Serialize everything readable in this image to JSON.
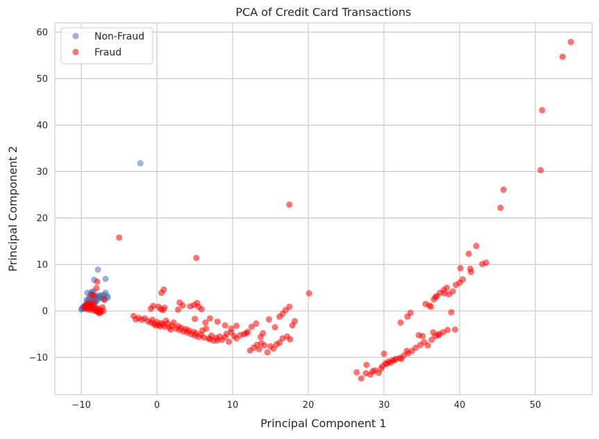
{
  "chart_data": {
    "type": "scatter",
    "title": "PCA of Credit Card Transactions",
    "xlabel": "Principal Component 1",
    "ylabel": "Principal Component 2",
    "xlim": [
      -13.5,
      57.5
    ],
    "ylim": [
      -18,
      62
    ],
    "xticks": [
      -10,
      0,
      10,
      20,
      30,
      40,
      50
    ],
    "yticks": [
      -10,
      0,
      10,
      20,
      30,
      40,
      50,
      60
    ],
    "tick_labels": {
      "x": [
        "−10",
        "0",
        "10",
        "20",
        "30",
        "40",
        "50"
      ],
      "y": [
        "−10",
        "0",
        "10",
        "20",
        "30",
        "40",
        "50",
        "60"
      ]
    },
    "grid": true,
    "legend_position": "top-left",
    "series": [
      {
        "name": "Non-Fraud",
        "color": "#4c72b0",
        "points": [
          [
            -10.0,
            0.3
          ],
          [
            -9.7,
            0.6
          ],
          [
            -9.5,
            0.9
          ],
          [
            -9.4,
            1.2
          ],
          [
            -9.3,
            1.6
          ],
          [
            -9.2,
            1.9
          ],
          [
            -9.1,
            2.2
          ],
          [
            -9.0,
            2.5
          ],
          [
            -8.9,
            3.0
          ],
          [
            -8.8,
            3.4
          ],
          [
            -8.7,
            3.8
          ],
          [
            -8.6,
            4.1
          ],
          [
            -8.5,
            2.6
          ],
          [
            -8.4,
            2.2
          ],
          [
            -8.3,
            1.9
          ],
          [
            -8.2,
            2.9
          ],
          [
            -8.1,
            3.3
          ],
          [
            -8.0,
            2.0
          ],
          [
            -7.9,
            2.5
          ],
          [
            -7.8,
            3.0
          ],
          [
            -7.7,
            2.7
          ],
          [
            -7.5,
            3.1
          ],
          [
            -7.3,
            2.8
          ],
          [
            -7.2,
            3.3
          ],
          [
            -7.0,
            3.5
          ],
          [
            -6.9,
            2.4
          ],
          [
            -6.8,
            3.9
          ],
          [
            -6.6,
            3.2
          ],
          [
            -6.5,
            2.9
          ],
          [
            -8.3,
            6.7
          ],
          [
            -7.8,
            8.9
          ],
          [
            -6.8,
            6.9
          ],
          [
            -2.2,
            31.8
          ],
          [
            -9.6,
            1.1
          ],
          [
            -9.3,
            2.4
          ],
          [
            -8.9,
            1.7
          ],
          [
            -8.6,
            3.6
          ],
          [
            -8.1,
            2.3
          ],
          [
            -9.8,
            0.8
          ],
          [
            -9.9,
            0.5
          ],
          [
            -9.2,
            3.9
          ],
          [
            -8.7,
            2.0
          ],
          [
            -8.4,
            4.2
          ],
          [
            -7.6,
            3.4
          ],
          [
            -9.4,
            0.4
          ],
          [
            -9.0,
            1.3
          ]
        ]
      },
      {
        "name": "Fraud",
        "color": "#ff0000",
        "points": [
          [
            -9.6,
            0.6
          ],
          [
            -9.5,
            0.9
          ],
          [
            -9.4,
            1.2
          ],
          [
            -9.3,
            0.8
          ],
          [
            -9.2,
            1.5
          ],
          [
            -9.1,
            0.5
          ],
          [
            -9.0,
            1.1
          ],
          [
            -8.9,
            0.3
          ],
          [
            -8.8,
            1.8
          ],
          [
            -8.7,
            0.7
          ],
          [
            -8.6,
            1.3
          ],
          [
            -8.5,
            0.2
          ],
          [
            -8.4,
            0.9
          ],
          [
            -8.3,
            1.6
          ],
          [
            -8.2,
            0.4
          ],
          [
            -8.1,
            0.0
          ],
          [
            -8.0,
            0.6
          ],
          [
            -7.9,
            -0.1
          ],
          [
            -7.8,
            0.5
          ],
          [
            -7.7,
            -0.3
          ],
          [
            -7.6,
            -0.5
          ],
          [
            -7.5,
            0.2
          ],
          [
            -7.4,
            -0.2
          ],
          [
            -7.2,
            0.8
          ],
          [
            -7.0,
            2.5
          ],
          [
            -7.1,
            0.0
          ],
          [
            -8.6,
            3.5
          ],
          [
            -8.3,
            3.2
          ],
          [
            -8.0,
            4.9
          ],
          [
            -7.9,
            6.3
          ],
          [
            -5.0,
            15.8
          ],
          [
            -3.1,
            -1.1
          ],
          [
            -2.8,
            -1.8
          ],
          [
            -2.4,
            -1.5
          ],
          [
            -2.0,
            -1.9
          ],
          [
            -1.6,
            -1.6
          ],
          [
            -1.2,
            -2.2
          ],
          [
            -0.8,
            -2.5
          ],
          [
            -0.6,
            -1.9
          ],
          [
            -0.4,
            -2.8
          ],
          [
            -0.2,
            -3.1
          ],
          [
            0.0,
            -2.4
          ],
          [
            0.2,
            -3.0
          ],
          [
            0.4,
            -3.3
          ],
          [
            0.6,
            -2.6
          ],
          [
            0.8,
            -2.9
          ],
          [
            1.0,
            -3.4
          ],
          [
            1.2,
            -2.1
          ],
          [
            1.4,
            -2.7
          ],
          [
            1.6,
            -3.5
          ],
          [
            1.8,
            -4.0
          ],
          [
            2.0,
            -3.2
          ],
          [
            2.2,
            -2.5
          ],
          [
            2.5,
            -3.8
          ],
          [
            2.8,
            -3.3
          ],
          [
            3.0,
            -4.1
          ],
          [
            3.2,
            -3.6
          ],
          [
            3.5,
            -4.4
          ],
          [
            3.8,
            -3.9
          ],
          [
            4.0,
            -4.6
          ],
          [
            4.2,
            -4.2
          ],
          [
            4.5,
            -5.0
          ],
          [
            4.8,
            -4.5
          ],
          [
            5.0,
            -5.3
          ],
          [
            5.2,
            -4.8
          ],
          [
            5.5,
            -5.6
          ],
          [
            5.8,
            -5.1
          ],
          [
            6.0,
            -4.2
          ],
          [
            6.2,
            -5.7
          ],
          [
            6.5,
            -3.8
          ],
          [
            6.8,
            -5.9
          ],
          [
            7.0,
            -6.1
          ],
          [
            7.2,
            -5.3
          ],
          [
            7.5,
            -6.4
          ],
          [
            7.8,
            -5.8
          ],
          [
            8.0,
            -6.3
          ],
          [
            8.3,
            -5.5
          ],
          [
            8.6,
            -6.2
          ],
          [
            9.0,
            -5.6
          ],
          [
            9.2,
            -4.9
          ],
          [
            9.5,
            -6.6
          ],
          [
            9.8,
            -4.6
          ],
          [
            10.2,
            -5.4
          ],
          [
            10.5,
            -5.9
          ],
          [
            11.0,
            -5.2
          ],
          [
            11.5,
            -5.0
          ],
          [
            12.0,
            -4.5
          ],
          [
            12.3,
            -8.5
          ],
          [
            12.8,
            -7.9
          ],
          [
            13.2,
            -7.3
          ],
          [
            13.5,
            -8.2
          ],
          [
            13.8,
            -6.9
          ],
          [
            14.2,
            -7.4
          ],
          [
            14.6,
            -8.9
          ],
          [
            15.0,
            -7.6
          ],
          [
            15.4,
            -8.1
          ],
          [
            15.8,
            -7.2
          ],
          [
            16.2,
            -6.8
          ],
          [
            16.6,
            -5.9
          ],
          [
            17.2,
            -5.5
          ],
          [
            17.6,
            -6.1
          ],
          [
            17.5,
            22.9
          ],
          [
            0.5,
            0.4
          ],
          [
            0.8,
            0.2
          ],
          [
            1.0,
            0.7
          ],
          [
            0.2,
            0.9
          ],
          [
            -0.5,
            1.1
          ],
          [
            -0.8,
            0.5
          ],
          [
            0.6,
            3.9
          ],
          [
            0.9,
            4.6
          ],
          [
            3.0,
            1.8
          ],
          [
            3.4,
            1.2
          ],
          [
            2.8,
            0.3
          ],
          [
            4.4,
            1.0
          ],
          [
            4.9,
            1.3
          ],
          [
            5.3,
            1.7
          ],
          [
            5.5,
            0.9
          ],
          [
            5.9,
            0.4
          ],
          [
            5.2,
            11.4
          ],
          [
            5.0,
            -1.7
          ],
          [
            6.4,
            -2.5
          ],
          [
            7.0,
            -1.6
          ],
          [
            8.0,
            -2.3
          ],
          [
            9.0,
            -3.1
          ],
          [
            9.8,
            -3.8
          ],
          [
            10.5,
            -3.2
          ],
          [
            12.5,
            -3.4
          ],
          [
            13.1,
            -2.7
          ],
          [
            14.0,
            -4.8
          ],
          [
            14.8,
            -1.8
          ],
          [
            15.6,
            -3.5
          ],
          [
            16.2,
            -1.2
          ],
          [
            16.6,
            -0.6
          ],
          [
            17.0,
            0.2
          ],
          [
            17.5,
            0.9
          ],
          [
            17.9,
            -3.1
          ],
          [
            18.2,
            -2.2
          ],
          [
            20.1,
            3.8
          ],
          [
            13.7,
            -5.6
          ],
          [
            11.8,
            -4.8
          ],
          [
            26.4,
            -13.2
          ],
          [
            27.0,
            -14.5
          ],
          [
            27.6,
            -13.4
          ],
          [
            28.2,
            -13.7
          ],
          [
            28.8,
            -12.8
          ],
          [
            29.3,
            -13.3
          ],
          [
            29.8,
            -11.9
          ],
          [
            30.2,
            -11.3
          ],
          [
            30.6,
            -10.9
          ],
          [
            31.1,
            -10.6
          ],
          [
            31.6,
            -10.3
          ],
          [
            32.1,
            -10.1
          ],
          [
            32.6,
            -9.6
          ],
          [
            33.2,
            -9.1
          ],
          [
            33.7,
            -8.6
          ],
          [
            34.2,
            -7.9
          ],
          [
            34.8,
            -7.3
          ],
          [
            35.3,
            -6.7
          ],
          [
            35.8,
            -7.4
          ],
          [
            36.3,
            -6.2
          ],
          [
            36.8,
            -5.4
          ],
          [
            37.3,
            -5.0
          ],
          [
            37.8,
            -4.6
          ],
          [
            38.4,
            -4.1
          ],
          [
            38.9,
            -0.3
          ],
          [
            39.4,
            -4.0
          ],
          [
            27.7,
            -11.6
          ],
          [
            28.5,
            -13.0
          ],
          [
            29.6,
            -12.4
          ],
          [
            30.0,
            -9.2
          ],
          [
            30.9,
            -11.1
          ],
          [
            32.3,
            -10.3
          ],
          [
            32.2,
            -2.5
          ],
          [
            33.1,
            -1.2
          ],
          [
            33.5,
            -0.4
          ],
          [
            35.5,
            1.5
          ],
          [
            36.2,
            0.9
          ],
          [
            36.6,
            2.5
          ],
          [
            37.0,
            3.2
          ],
          [
            37.4,
            3.9
          ],
          [
            37.9,
            4.5
          ],
          [
            38.3,
            5.0
          ],
          [
            38.6,
            3.6
          ],
          [
            39.1,
            4.2
          ],
          [
            39.5,
            5.6
          ],
          [
            40.0,
            6.1
          ],
          [
            40.4,
            6.8
          ],
          [
            40.1,
            9.2
          ],
          [
            41.2,
            12.3
          ],
          [
            41.5,
            8.4
          ],
          [
            42.2,
            14.0
          ],
          [
            43.0,
            10.1
          ],
          [
            43.5,
            10.4
          ],
          [
            41.4,
            9.1
          ],
          [
            36.0,
            1.2
          ],
          [
            34.6,
            -5.2
          ],
          [
            35.1,
            -5.4
          ],
          [
            36.5,
            -4.6
          ],
          [
            37.2,
            -5.2
          ],
          [
            38.0,
            3.8
          ],
          [
            36.8,
            3.0
          ],
          [
            30.4,
            -11.4
          ],
          [
            31.4,
            -10.6
          ],
          [
            33.0,
            -8.6
          ],
          [
            45.4,
            22.2
          ],
          [
            45.8,
            26.1
          ],
          [
            50.7,
            30.3
          ],
          [
            50.9,
            43.2
          ],
          [
            53.6,
            54.7
          ],
          [
            54.7,
            57.9
          ]
        ]
      }
    ]
  }
}
